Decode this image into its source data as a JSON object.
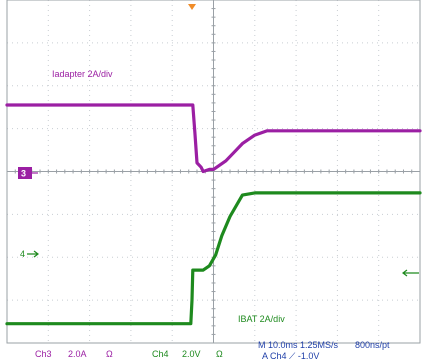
{
  "chart_data": {
    "type": "line",
    "x_unit": "div",
    "xlim": [
      0,
      10
    ],
    "ylim": [
      -4,
      4
    ],
    "grid": true,
    "series": [
      {
        "name": "Iadapter 2A/div",
        "color": "#9b1fa3",
        "x": [
          0,
          4.5,
          4.55,
          4.6,
          4.7,
          4.75,
          4.9,
          5.0,
          5.3,
          5.5,
          5.7,
          6.0,
          6.3,
          6.45,
          10
        ],
        "y": [
          1.55,
          1.55,
          0.9,
          0.2,
          0.1,
          0.0,
          0.05,
          0.05,
          0.25,
          0.45,
          0.65,
          0.85,
          0.95,
          0.95,
          0.95
        ]
      },
      {
        "name": "IBAT 2A/div",
        "color": "#1e8a1e",
        "x": [
          0,
          4.45,
          4.48,
          4.5,
          4.52,
          4.6,
          4.75,
          4.9,
          5.05,
          5.2,
          5.4,
          5.7,
          6.0,
          10
        ],
        "y": [
          -3.55,
          -3.55,
          -3.0,
          -2.3,
          -2.3,
          -2.3,
          -2.3,
          -2.2,
          -1.95,
          -1.5,
          -1.05,
          -0.55,
          -0.5,
          -0.5
        ]
      }
    ],
    "annotations": {
      "ch3_marker": "3",
      "ch4_marker": "4",
      "iadapter_label": "Iadapter 2A/div",
      "ibat_label": "IBAT 2A/div"
    },
    "readout": {
      "row1": [
        "Ch3",
        "2.0A",
        "Ω",
        "Ch4",
        "2.0V",
        "Ω"
      ],
      "timebase": "M 10.0ms 1.25MS/s",
      "resolution": "800ns/pt",
      "trigger": "A Ch4 ⟋ -1.0V"
    }
  }
}
